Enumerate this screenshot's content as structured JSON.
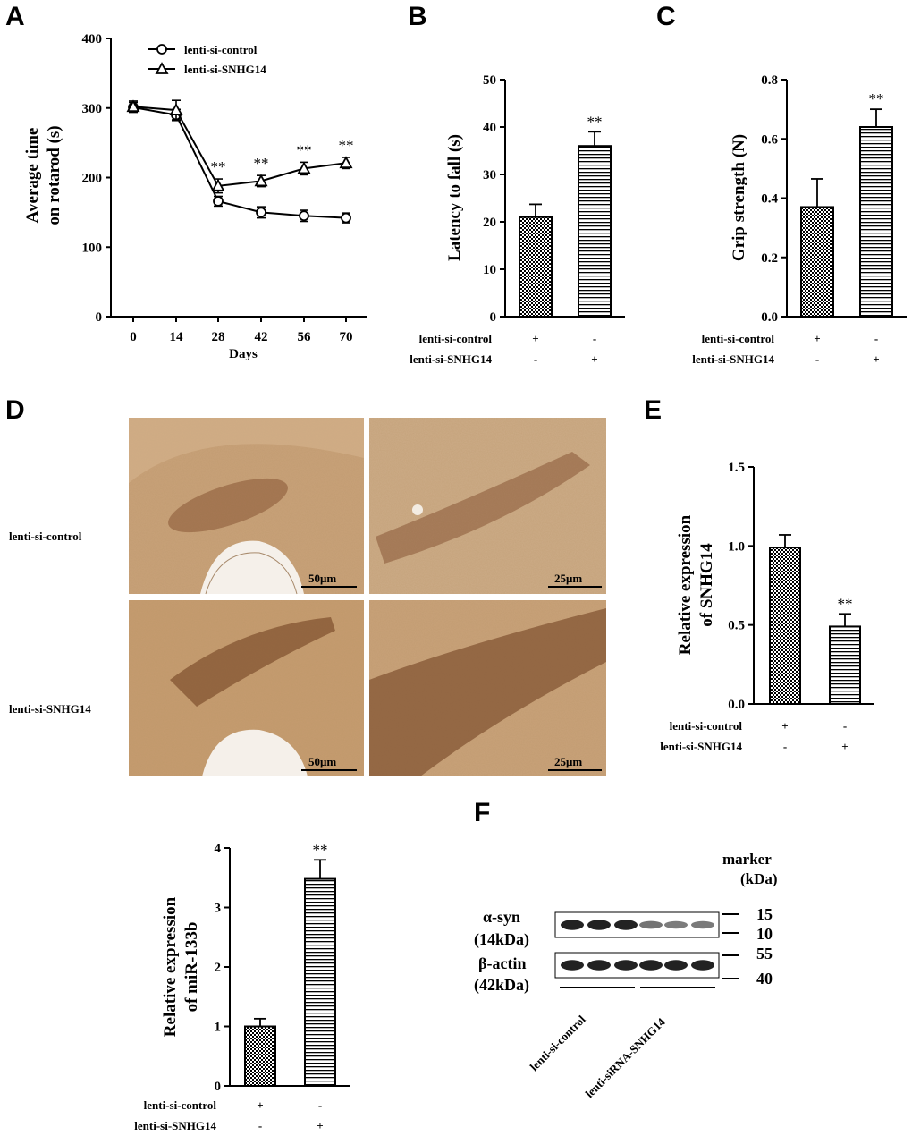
{
  "panel_labels": {
    "a": "A",
    "b": "B",
    "c": "C",
    "d": "D",
    "e": "E",
    "f": "F"
  },
  "colors": {
    "ink": "#000000",
    "tissue": "#c9a27a",
    "neuron": "#6b3a1c",
    "background": "#ffffff"
  },
  "chart_data": [
    {
      "id": "A",
      "type": "line",
      "title": "",
      "xlabel": "Days",
      "ylabel": [
        "Average time",
        "on rotarod (s)"
      ],
      "x": [
        0,
        14,
        28,
        42,
        56,
        70
      ],
      "xticks": [
        "0",
        "14",
        "28",
        "42",
        "56",
        "70"
      ],
      "ylim": [
        0,
        400
      ],
      "yticks": [
        "0",
        "100",
        "200",
        "300",
        "400"
      ],
      "series": [
        {
          "name": "lenti-si-control",
          "marker": "circle",
          "values": [
            301,
            290,
            166,
            150,
            145,
            142
          ],
          "err": [
            7,
            8,
            7,
            8,
            8,
            7
          ]
        },
        {
          "name": "lenti-si-SNHG14",
          "marker": "triangle",
          "values": [
            302,
            297,
            188,
            195,
            213,
            221
          ],
          "err": [
            8,
            14,
            10,
            8,
            9,
            8
          ]
        }
      ],
      "significance": [
        "",
        "",
        "**",
        "**",
        "**",
        "**"
      ],
      "legend": "top-center"
    },
    {
      "id": "B",
      "type": "bar",
      "ylabel": "Latency to fall (s)",
      "ylim": [
        0,
        50
      ],
      "yticks": [
        "0",
        "10",
        "20",
        "30",
        "40",
        "50"
      ],
      "values": [
        21,
        36
      ],
      "err": [
        2.7,
        3
      ],
      "significance": [
        "",
        "**"
      ],
      "rows": [
        {
          "label": "lenti-si-control",
          "marks": [
            "+",
            "-"
          ]
        },
        {
          "label": "lenti-si-SNHG14",
          "marks": [
            "-",
            "+"
          ]
        }
      ]
    },
    {
      "id": "C",
      "type": "bar",
      "ylabel": "Grip strength (N)",
      "ylim": [
        0,
        0.8
      ],
      "yticks": [
        "0.0",
        "0.2",
        "0.4",
        "0.6",
        "0.8"
      ],
      "values": [
        0.37,
        0.64
      ],
      "err": [
        0.095,
        0.06
      ],
      "significance": [
        "",
        "**"
      ],
      "rows": [
        {
          "label": "lenti-si-control",
          "marks": [
            "+",
            "-"
          ]
        },
        {
          "label": "lenti-si-SNHG14",
          "marks": [
            "-",
            "+"
          ]
        }
      ]
    },
    {
      "id": "E",
      "type": "bar",
      "ylabel": [
        "Relative expression",
        "of  SNHG14"
      ],
      "ylim": [
        0,
        1.5
      ],
      "yticks": [
        "0.0",
        "0.5",
        "1.0",
        "1.5"
      ],
      "values": [
        0.99,
        0.49
      ],
      "err": [
        0.08,
        0.08
      ],
      "significance": [
        "",
        "**"
      ],
      "rows": [
        {
          "label": "lenti-si-control",
          "marks": [
            "+",
            "-"
          ]
        },
        {
          "label": "lenti-si-SNHG14",
          "marks": [
            "-",
            "+"
          ]
        }
      ]
    },
    {
      "id": "G",
      "type": "bar",
      "ylabel": [
        "Relative expression",
        "of miR-133b"
      ],
      "ylim": [
        0,
        4
      ],
      "yticks": [
        "0",
        "1",
        "2",
        "3",
        "4"
      ],
      "values": [
        1.0,
        3.48
      ],
      "err": [
        0.13,
        0.32
      ],
      "significance": [
        "",
        "**"
      ],
      "rows": [
        {
          "label": "lenti-si-control",
          "marks": [
            "+",
            "-"
          ]
        },
        {
          "label": "lenti-si-SNHG14",
          "marks": [
            "-",
            "+"
          ]
        }
      ]
    }
  ],
  "panel_d": {
    "row_labels": [
      "lenti-si-control",
      "lenti-si-SNHG14"
    ],
    "scale_bars": [
      "50μm",
      "25μm",
      "50μm",
      "25μm"
    ]
  },
  "panel_f": {
    "marker_header": [
      "marker",
      "(kDa)"
    ],
    "bands": [
      {
        "name": "α-syn",
        "size": "(14kDa)",
        "markers": [
          "15",
          "10"
        ],
        "intensities": [
          0.9,
          0.9,
          0.9,
          0.45,
          0.4,
          0.42
        ]
      },
      {
        "name": "β-actin",
        "size": "(42kDa)",
        "markers": [
          "55",
          "40"
        ],
        "intensities": [
          0.9,
          0.9,
          0.9,
          0.9,
          0.9,
          0.9
        ]
      }
    ],
    "groups": [
      "lenti-si-control",
      "lenti-siRNA-SNHG14"
    ]
  }
}
